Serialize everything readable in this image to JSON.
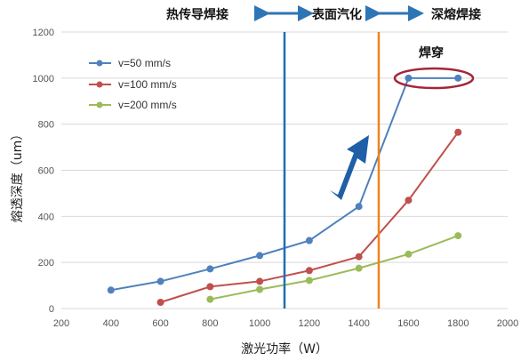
{
  "chart_data": {
    "type": "line",
    "xlabel": "激光功率（W）",
    "ylabel": "熔透深度（um）",
    "xlim": [
      200,
      2000
    ],
    "ylim": [
      0,
      1200
    ],
    "xticks": [
      200,
      400,
      600,
      800,
      1000,
      1200,
      1400,
      1600,
      1800,
      2000
    ],
    "yticks": [
      0,
      200,
      400,
      600,
      800,
      1000,
      1200
    ],
    "grid": "horizontal",
    "legend_position": "top-left",
    "series": [
      {
        "name": "v=50 mm/s",
        "color": "#4f81bd",
        "x": [
          400,
          600,
          800,
          1000,
          1200,
          1400,
          1600,
          1800
        ],
        "y": [
          80,
          118,
          172,
          230,
          295,
          443,
          1000,
          1000
        ]
      },
      {
        "name": "v=100 mm/s",
        "color": "#c0504d",
        "x": [
          600,
          800,
          1000,
          1200,
          1400,
          1600,
          1800
        ],
        "y": [
          27,
          95,
          118,
          165,
          225,
          470,
          765
        ]
      },
      {
        "name": "v=200 mm/s",
        "color": "#9bbb59",
        "x": [
          800,
          1000,
          1200,
          1400,
          1600,
          1800
        ],
        "y": [
          40,
          83,
          122,
          175,
          236,
          316
        ]
      }
    ],
    "vertical_lines": [
      {
        "x": 1100,
        "color": "#1f6eb5"
      },
      {
        "x": 1480,
        "color": "#f0821e"
      }
    ],
    "region_labels": [
      "热传导焊接",
      "表面汽化",
      "深熔焊接"
    ],
    "region_arrow_color": "#2e75b6",
    "trend_arrow_color": "#1f5fa8",
    "annotation": {
      "text": "焊穿",
      "ellipse_color": "#a3263a",
      "target_x": [
        1600,
        1800
      ],
      "target_y": 1000
    }
  }
}
